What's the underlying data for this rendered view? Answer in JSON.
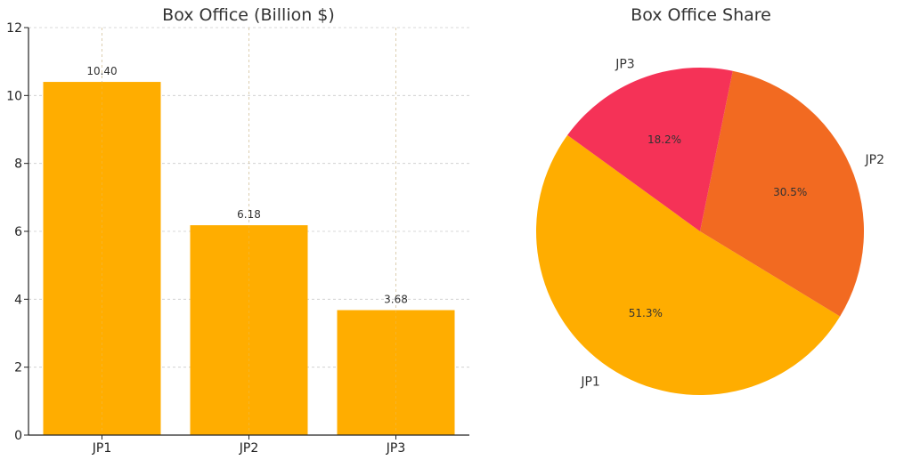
{
  "chart_data": [
    {
      "type": "bar",
      "title": "Box Office (Billion $)",
      "categories": [
        "JP1",
        "JP2",
        "JP3"
      ],
      "values": [
        10.4,
        6.18,
        3.68
      ],
      "value_labels": [
        "10.40",
        "6.18",
        "3.68"
      ],
      "yticks": [
        "0",
        "2",
        "4",
        "6",
        "8",
        "10",
        "12"
      ],
      "ylim": [
        0,
        12
      ],
      "grid": true,
      "color": "#FFAD00"
    },
    {
      "type": "pie",
      "title": "Box Office Share",
      "labels": [
        "JP1",
        "JP2",
        "JP3"
      ],
      "values": [
        51.3,
        30.5,
        18.2
      ],
      "pct_labels": [
        "51.3%",
        "30.5%",
        "18.2%"
      ],
      "colors": [
        "#FFAD00",
        "#F26A21",
        "#F53257"
      ]
    }
  ]
}
